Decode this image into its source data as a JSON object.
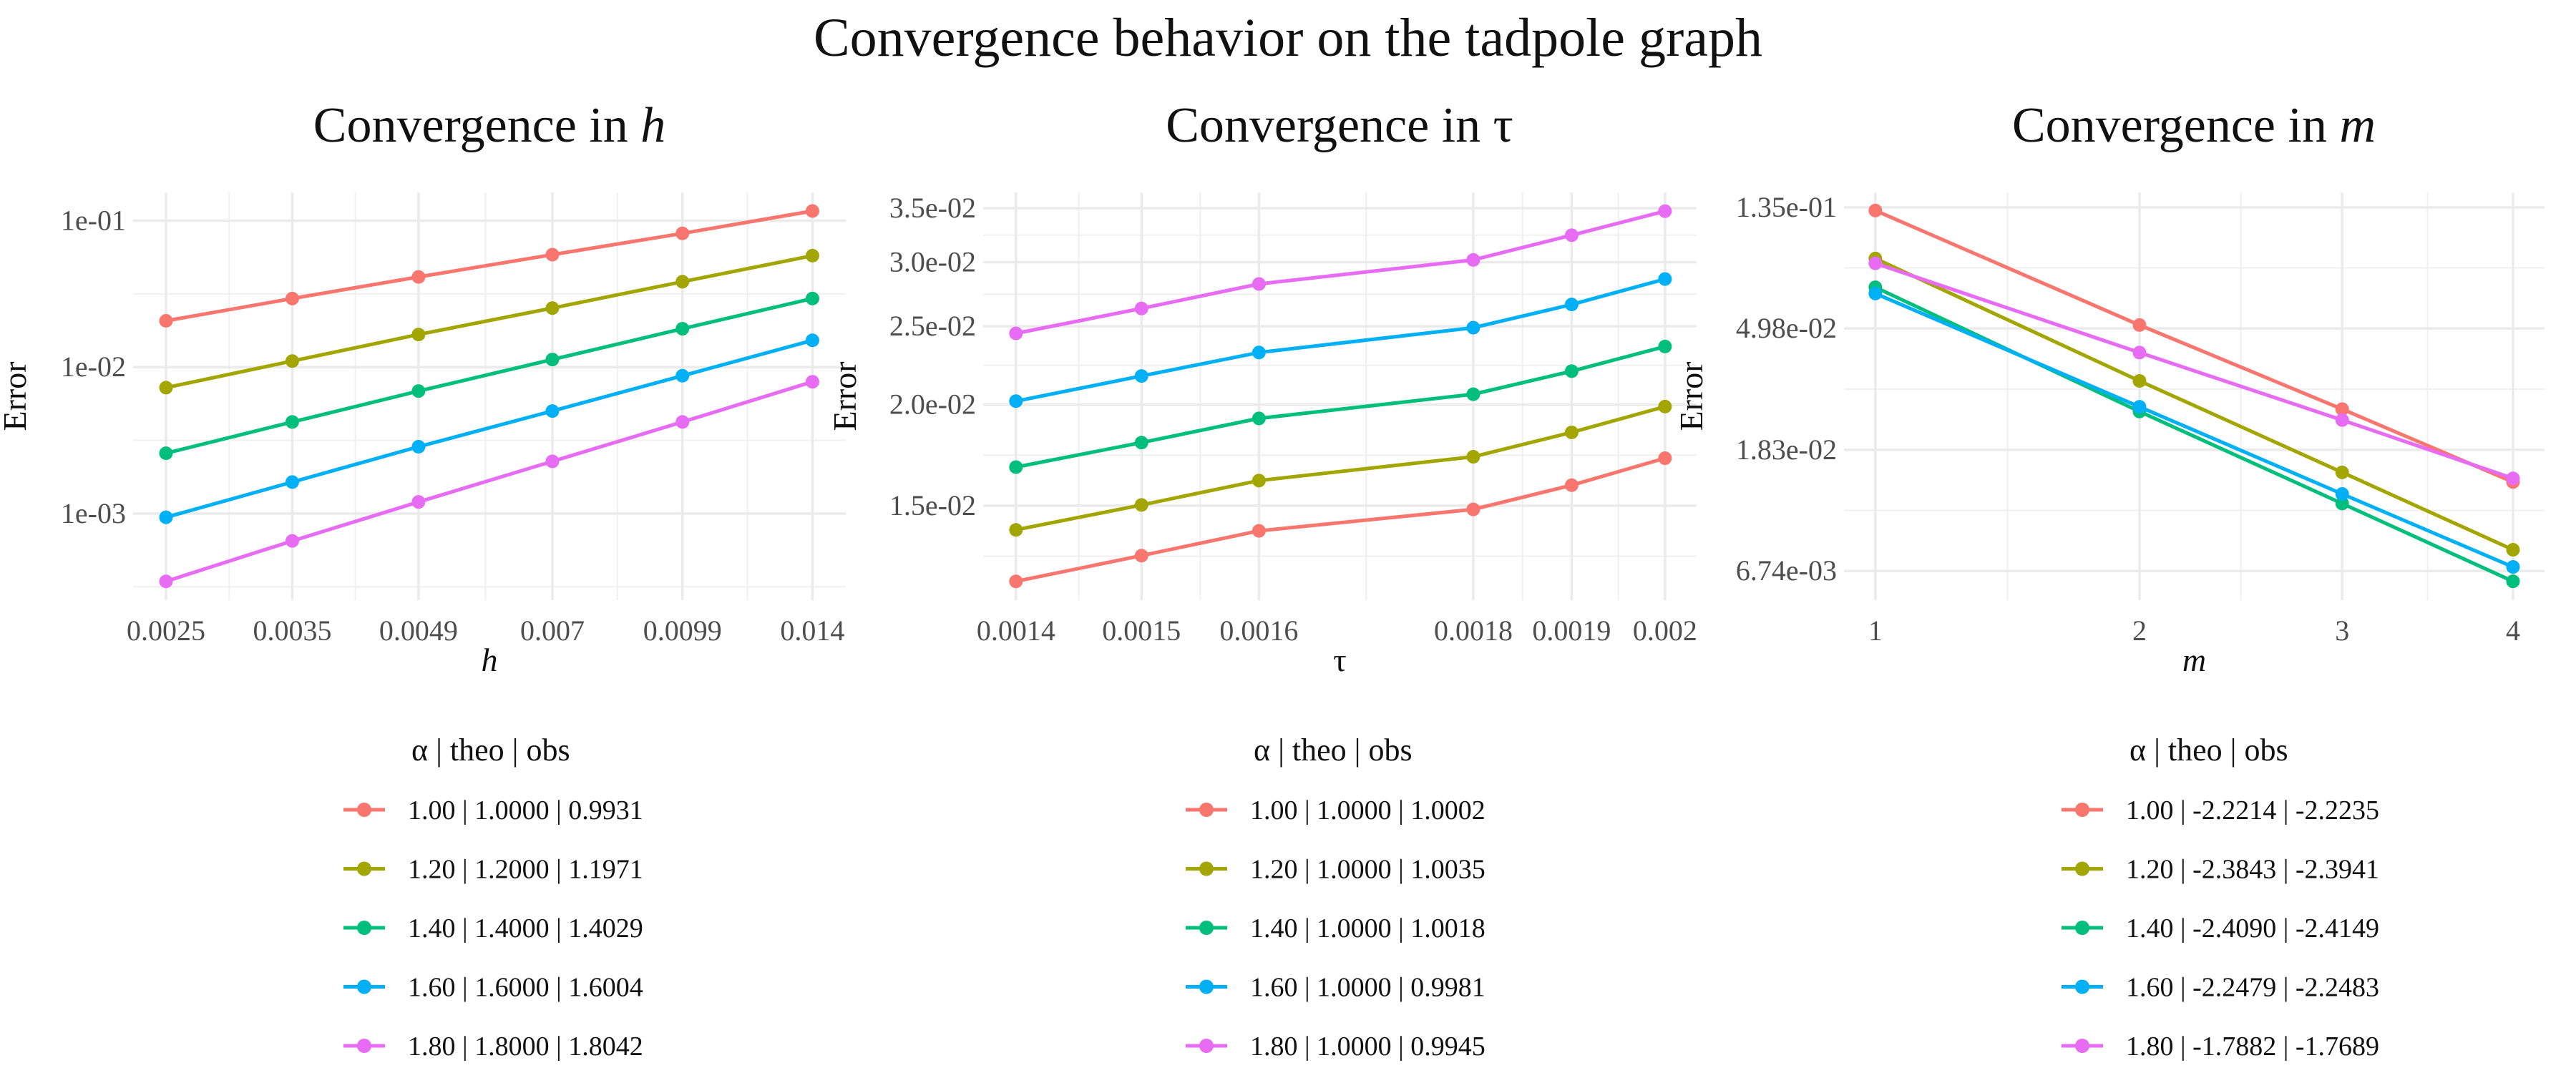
{
  "title": "Convergence behavior on the tadpole graph",
  "colors": [
    "#F8766D",
    "#A3A500",
    "#00BF7D",
    "#00B0F6",
    "#E76BF3"
  ],
  "chart_data": [
    {
      "type": "line",
      "title_prefix": "Convergence in ",
      "title_var": "h",
      "xlabel": "h",
      "ylabel": "Error",
      "x_scale": "log10",
      "y_scale": "log10",
      "x": [
        0.0025,
        0.0035,
        0.0049,
        0.007,
        0.0099,
        0.014
      ],
      "x_tick_labels": [
        "0.0025",
        "0.0035",
        "0.0049",
        "0.007",
        "0.0099",
        "0.014"
      ],
      "y_ticks": [
        0.1,
        0.01,
        0.001
      ],
      "y_tick_labels": [
        "1e-01",
        "1e-02",
        "1e-03"
      ],
      "xlim": [
        0.00229,
        0.0153
      ],
      "ylim": [
        0.000256,
        0.156
      ],
      "grid": true,
      "legend": {
        "position": "bottom",
        "title": [
          "α",
          "|",
          "theo",
          "|",
          "obs"
        ],
        "entries": [
          "1.00 | 1.0000 | 0.9931",
          "1.20 | 1.2000 | 1.1971",
          "1.40 | 1.4000 | 1.4029",
          "1.60 | 1.6000 | 1.6004",
          "1.80 | 1.8000 | 1.8042"
        ]
      },
      "series": [
        {
          "alpha": "1.00",
          "values": [
            0.0207,
            0.0294,
            0.0413,
            0.0586,
            0.0819,
            0.1164
          ]
        },
        {
          "alpha": "1.20",
          "values": [
            0.00724,
            0.011,
            0.0167,
            0.0253,
            0.0383,
            0.0577
          ]
        },
        {
          "alpha": "1.40",
          "values": [
            0.00258,
            0.00422,
            0.00686,
            0.01127,
            0.01828,
            0.0294
          ]
        },
        {
          "alpha": "1.60",
          "values": [
            0.000942,
            0.00164,
            0.00286,
            0.00501,
            0.00873,
            0.01524
          ]
        },
        {
          "alpha": "1.80",
          "values": [
            0.000344,
            0.00065,
            0.0012,
            0.00227,
            0.00422,
            0.00794
          ]
        }
      ]
    },
    {
      "type": "line",
      "title_prefix": "Convergence in ",
      "title_var": "τ",
      "xlabel": "τ",
      "ylabel": "Error",
      "x_scale": "log10",
      "y_scale": "log10",
      "x": [
        0.0014,
        0.0015,
        0.0016,
        0.0018,
        0.0019,
        0.002
      ],
      "x_tick_labels": [
        "0.0014",
        "0.0015",
        "0.0016",
        "0.0018",
        "0.0019",
        "0.002"
      ],
      "y_ticks": [
        0.035,
        0.03,
        0.025,
        0.02,
        0.015
      ],
      "y_tick_labels": [
        "3.5e-02",
        "3.0e-02",
        "2.5e-02",
        "2.0e-02",
        "1.5e-02"
      ],
      "xlim": [
        0.001375,
        0.002035
      ],
      "ylim": [
        0.01146,
        0.0366
      ],
      "grid": true,
      "legend": {
        "position": "bottom",
        "title": [
          "α",
          "|",
          "theo",
          "|",
          "obs"
        ],
        "entries": [
          "1.00 | 1.0000 | 1.0002",
          "1.20 | 1.0000 | 1.0035",
          "1.40 | 1.0000 | 1.0018",
          "1.60 | 1.0000 | 0.9981",
          "1.80 | 1.0000 | 0.9945"
        ]
      },
      "series": [
        {
          "alpha": "1.00",
          "values": [
            0.01209,
            0.01301,
            0.01396,
            0.01484,
            0.0159,
            0.01717
          ]
        },
        {
          "alpha": "1.20",
          "values": [
            0.014,
            0.01503,
            0.01611,
            0.01724,
            0.01848,
            0.01989
          ]
        },
        {
          "alpha": "1.40",
          "values": [
            0.01674,
            0.01795,
            0.01923,
            0.0206,
            0.022,
            0.0236
          ]
        },
        {
          "alpha": "1.60",
          "values": [
            0.0202,
            0.0217,
            0.0232,
            0.0249,
            0.0266,
            0.0286
          ]
        },
        {
          "alpha": "1.80",
          "values": [
            0.0245,
            0.0263,
            0.0282,
            0.0302,
            0.0324,
            0.0347
          ]
        }
      ]
    },
    {
      "type": "line",
      "title_prefix": "Convergence in ",
      "title_var": "m",
      "xlabel": "m",
      "ylabel": "Error",
      "x_scale": "sqrt",
      "y_scale": "ln",
      "x": [
        1,
        2,
        3,
        4
      ],
      "x_tick_labels": [
        "1",
        "2",
        "3",
        "4"
      ],
      "y_ticks": [
        0.135,
        0.0498,
        0.0183,
        0.00674
      ],
      "y_tick_labels": [
        "1.35e-01",
        "4.98e-02",
        "1.83e-02",
        "6.74e-03"
      ],
      "xlim": [
        0.904,
        4.2
      ],
      "ylim": [
        0.0053,
        0.1528
      ],
      "grid": true,
      "legend": {
        "position": "bottom",
        "title": [
          "α",
          "|",
          "theo",
          "|",
          "obs"
        ],
        "entries": [
          "1.00 | -2.2214 | -2.2235",
          "1.20 | -2.3843 | -2.3941",
          "1.40 | -2.4090 | -2.4149",
          "1.60 | -2.2479 | -2.2483",
          "1.80 | -1.7882 | -1.7689"
        ]
      },
      "series": [
        {
          "alpha": "1.00",
          "values": [
            0.1316,
            0.0512,
            0.0256,
            0.01404
          ]
        },
        {
          "alpha": "1.20",
          "values": [
            0.0886,
            0.0323,
            0.0152,
            0.00803
          ]
        },
        {
          "alpha": "1.40",
          "values": [
            0.0699,
            0.0251,
            0.01176,
            0.00619
          ]
        },
        {
          "alpha": "1.60",
          "values": [
            0.0664,
            0.0261,
            0.01272,
            0.00697
          ]
        },
        {
          "alpha": "1.80",
          "values": [
            0.0852,
            0.0408,
            0.0234,
            0.01446
          ]
        }
      ]
    }
  ]
}
